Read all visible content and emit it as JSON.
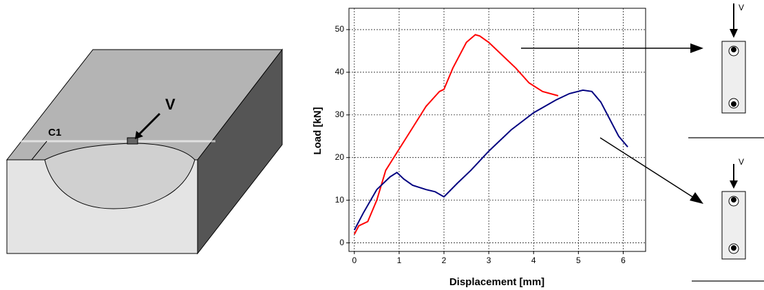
{
  "chart_data": {
    "type": "line",
    "x_label": "Displacement [mm]",
    "y_label": "Load [kN]",
    "xlim": [
      -0.12,
      6.5
    ],
    "ylim": [
      -2,
      55
    ],
    "xticks": [
      0,
      1,
      2,
      3,
      4,
      5,
      6
    ],
    "yticks": [
      0,
      10,
      20,
      30,
      40,
      50
    ],
    "grid": true,
    "series": [
      {
        "color": "#ff0000",
        "x": [
          0,
          0.1,
          0.3,
          0.5,
          0.7,
          1.0,
          1.3,
          1.6,
          1.9,
          2.0,
          2.2,
          2.5,
          2.7,
          2.8,
          3.0,
          3.3,
          3.6,
          3.9,
          4.2,
          4.55
        ],
        "values": [
          2,
          4,
          5,
          10,
          17,
          22,
          27,
          32,
          35.5,
          36,
          41,
          47,
          48.8,
          48.5,
          47,
          44,
          41,
          37.5,
          35.5,
          34.5
        ]
      },
      {
        "color": "#000080",
        "x": [
          0,
          0.2,
          0.5,
          0.8,
          0.95,
          1.1,
          1.3,
          1.6,
          1.8,
          2.0,
          2.3,
          2.6,
          3.0,
          3.5,
          4.0,
          4.5,
          4.8,
          5.1,
          5.3,
          5.5,
          5.7,
          5.9,
          6.1
        ],
        "values": [
          3,
          7,
          12.5,
          15.5,
          16.5,
          15,
          13.5,
          12.5,
          12,
          10.8,
          14,
          17,
          21.5,
          26.5,
          30.5,
          33.5,
          35,
          35.8,
          35.5,
          33,
          29,
          25,
          22.5
        ]
      }
    ]
  },
  "figure_labels": {
    "block_load": "V",
    "edge_distance": "C1",
    "top_load": "V",
    "bottom_load": "V"
  }
}
